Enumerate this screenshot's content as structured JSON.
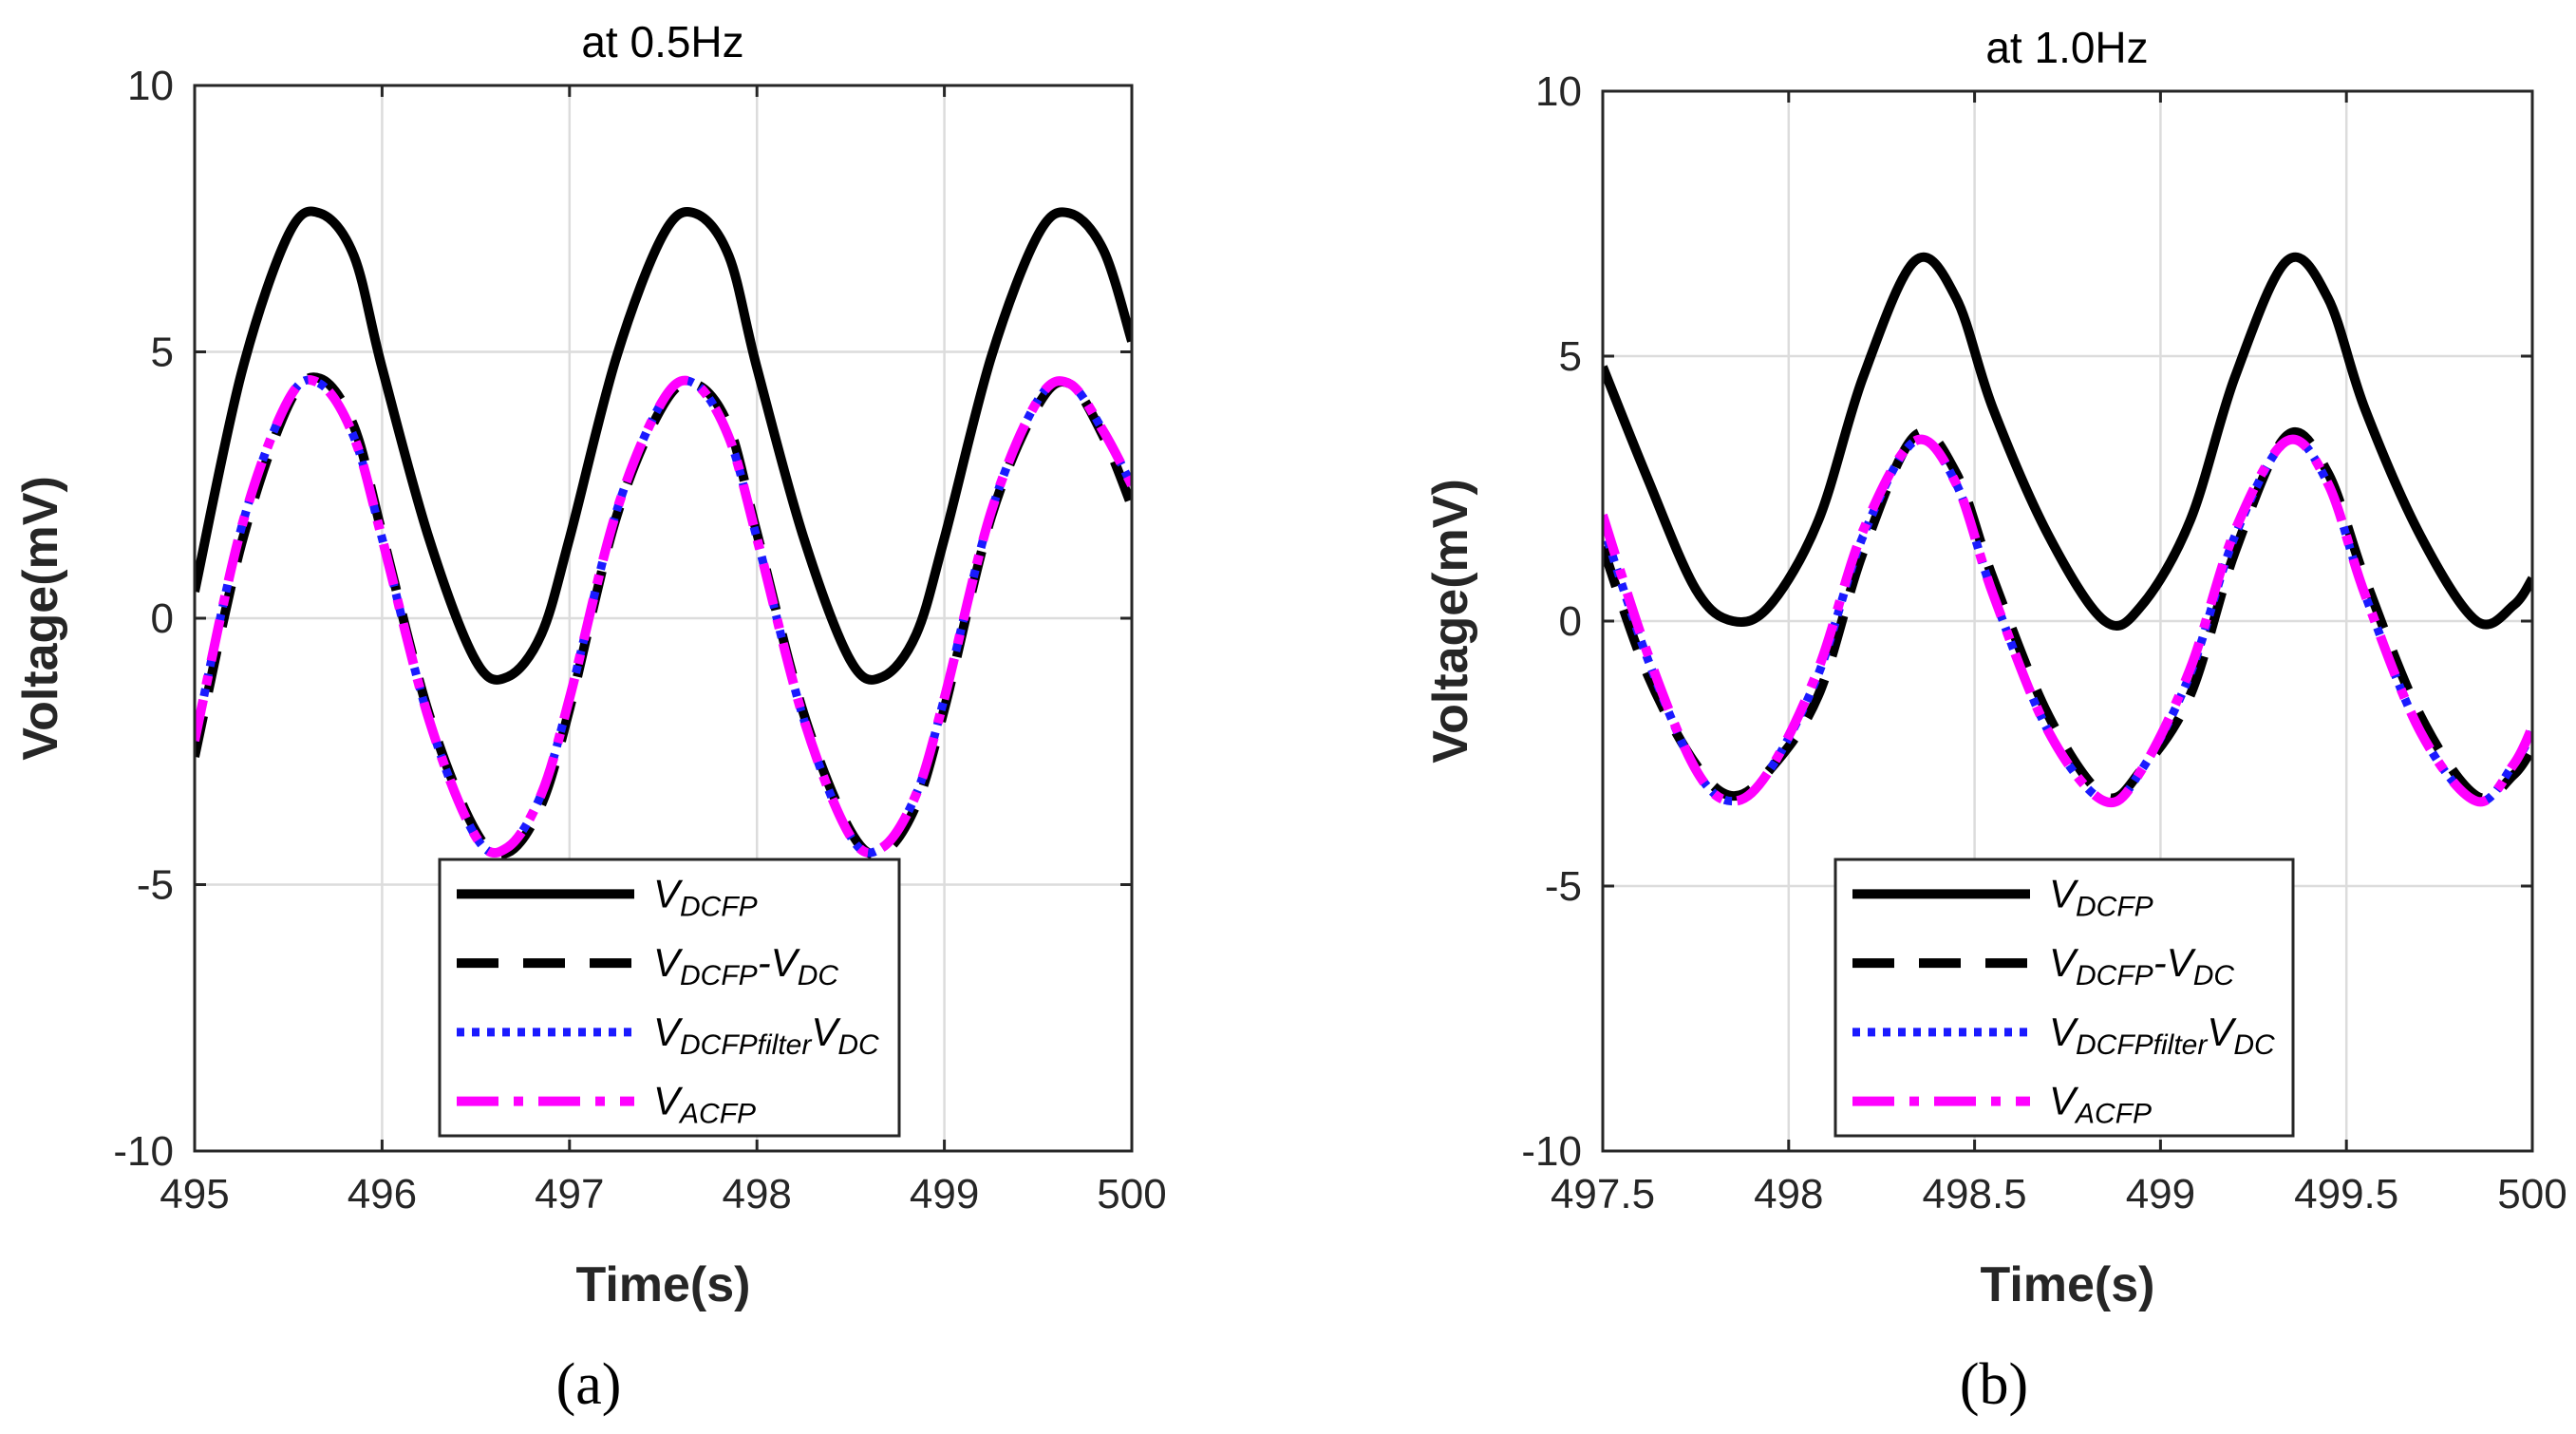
{
  "chart_data": [
    {
      "panel_label": "(a)",
      "type": "line",
      "title": "at 0.5Hz",
      "xlabel": "Time(s)",
      "ylabel": "Voltage(mV)",
      "xlim": [
        495,
        500
      ],
      "ylim": [
        -10,
        10
      ],
      "xticks": [
        495,
        496,
        497,
        498,
        499,
        500
      ],
      "xtick_labels": [
        "495",
        "496",
        "497",
        "498",
        "499",
        "500"
      ],
      "yticks": [
        -10,
        -5,
        0,
        5,
        10
      ],
      "ytick_labels": [
        "-10",
        "-5",
        "0",
        "5",
        "10"
      ],
      "grid": true,
      "legend_position": "bottom-right",
      "series": [
        {
          "name": "V_DCFP",
          "color": "#000000",
          "style": "solid",
          "x": [
            495.0,
            495.25,
            495.5,
            495.67,
            495.85,
            496.0,
            496.25,
            496.5,
            496.67,
            496.85,
            497.0,
            497.25,
            497.5,
            497.67,
            497.85,
            498.0,
            498.25,
            498.5,
            498.67,
            498.85,
            499.0,
            499.25,
            499.5,
            499.67,
            499.85,
            500.0
          ],
          "y": [
            0.5,
            4.6,
            7.2,
            7.6,
            6.8,
            4.7,
            1.5,
            -0.8,
            -1.1,
            -0.3,
            1.5,
            4.9,
            7.2,
            7.6,
            6.8,
            4.7,
            1.5,
            -0.8,
            -1.1,
            -0.3,
            1.5,
            4.9,
            7.2,
            7.6,
            6.9,
            5.2
          ]
        },
        {
          "name": "V_DCFP-V_DC",
          "color": "#000000",
          "style": "dashed",
          "x": [
            495.0,
            495.25,
            495.5,
            495.67,
            495.85,
            496.0,
            496.25,
            496.5,
            496.67,
            496.85,
            497.0,
            497.25,
            497.5,
            497.67,
            497.85,
            498.0,
            498.25,
            498.5,
            498.67,
            498.85,
            499.0,
            499.25,
            499.5,
            499.67,
            499.85,
            500.0
          ],
          "y": [
            -2.6,
            1.4,
            4.0,
            4.5,
            3.6,
            1.6,
            -1.8,
            -4.0,
            -4.4,
            -3.5,
            -1.7,
            1.9,
            4.0,
            4.4,
            3.6,
            1.6,
            -1.8,
            -4.0,
            -4.4,
            -3.5,
            -1.7,
            1.9,
            4.0,
            4.4,
            3.4,
            2.1
          ]
        },
        {
          "name": "V_DCFPfilterV_DC",
          "color": "#1a1aff",
          "style": "dotted",
          "x": [
            495.0,
            495.25,
            495.5,
            495.67,
            495.85,
            496.0,
            496.25,
            496.5,
            496.67,
            496.85,
            497.0,
            497.25,
            497.5,
            497.67,
            497.85,
            498.0,
            498.25,
            498.5,
            498.67,
            498.85,
            499.0,
            499.25,
            499.5,
            499.67,
            499.85,
            500.0
          ],
          "y": [
            -2.3,
            1.7,
            4.1,
            4.4,
            3.4,
            1.5,
            -1.9,
            -4.1,
            -4.3,
            -3.3,
            -1.5,
            2.0,
            4.1,
            4.4,
            3.4,
            1.5,
            -1.9,
            -4.1,
            -4.3,
            -3.3,
            -1.5,
            2.0,
            4.1,
            4.4,
            3.5,
            2.5
          ]
        },
        {
          "name": "V_ACFP",
          "color": "#ff00ff",
          "style": "dashdot",
          "x": [
            495.0,
            495.25,
            495.5,
            495.67,
            495.85,
            496.0,
            496.25,
            496.5,
            496.67,
            496.85,
            497.0,
            497.25,
            497.5,
            497.67,
            497.85,
            498.0,
            498.25,
            498.5,
            498.67,
            498.85,
            499.0,
            499.25,
            499.5,
            499.67,
            499.85,
            500.0
          ],
          "y": [
            -2.3,
            1.7,
            4.1,
            4.4,
            3.4,
            1.5,
            -1.9,
            -4.1,
            -4.3,
            -3.3,
            -1.5,
            2.0,
            4.1,
            4.4,
            3.4,
            1.5,
            -1.9,
            -4.1,
            -4.3,
            -3.3,
            -1.5,
            2.0,
            4.1,
            4.4,
            3.5,
            2.5
          ]
        }
      ]
    },
    {
      "panel_label": "(b)",
      "type": "line",
      "title": "at 1.0Hz",
      "xlabel": "Time(s)",
      "ylabel": "Voltage(mV)",
      "xlim": [
        497.5,
        500
      ],
      "ylim": [
        -10,
        10
      ],
      "xticks": [
        497.5,
        498,
        498.5,
        499,
        499.5,
        500
      ],
      "xtick_labels": [
        "497.5",
        "498",
        "498.5",
        "499",
        "499.5",
        "500"
      ],
      "yticks": [
        -10,
        -5,
        0,
        5,
        10
      ],
      "ytick_labels": [
        "-10",
        "-5",
        "0",
        "5",
        "10"
      ],
      "grid": true,
      "legend_position": "bottom-right",
      "series": [
        {
          "name": "V_DCFP",
          "color": "#000000",
          "style": "solid",
          "x": [
            497.5,
            497.62,
            497.75,
            497.85,
            497.95,
            498.08,
            498.2,
            498.34,
            498.45,
            498.55,
            498.7,
            498.85,
            498.95,
            499.08,
            499.2,
            499.34,
            499.45,
            499.55,
            499.7,
            499.85,
            499.95,
            500.0
          ],
          "y": [
            4.8,
            2.7,
            0.6,
            0.0,
            0.3,
            1.9,
            4.6,
            6.8,
            6.1,
            4.0,
            1.6,
            0.0,
            0.3,
            1.9,
            4.6,
            6.8,
            6.1,
            4.0,
            1.6,
            0.0,
            0.3,
            0.8
          ]
        },
        {
          "name": "V_DCFP-V_DC",
          "color": "#000000",
          "style": "dashed",
          "x": [
            497.5,
            497.62,
            497.75,
            497.85,
            497.95,
            498.08,
            498.2,
            498.34,
            498.45,
            498.55,
            498.7,
            498.85,
            498.95,
            499.08,
            499.2,
            499.34,
            499.45,
            499.55,
            499.7,
            499.85,
            499.95,
            500.0
          ],
          "y": [
            1.4,
            -1.0,
            -2.7,
            -3.3,
            -2.8,
            -1.4,
            1.3,
            3.5,
            2.8,
            0.8,
            -1.8,
            -3.3,
            -2.8,
            -1.4,
            1.3,
            3.5,
            2.8,
            0.8,
            -1.8,
            -3.3,
            -2.9,
            -2.4
          ]
        },
        {
          "name": "V_DCFPfilterV_DC",
          "color": "#1a1aff",
          "style": "dotted",
          "x": [
            497.5,
            497.62,
            497.75,
            497.85,
            497.95,
            498.08,
            498.2,
            498.34,
            498.45,
            498.55,
            498.7,
            498.85,
            498.95,
            499.08,
            499.2,
            499.34,
            499.45,
            499.55,
            499.7,
            499.85,
            499.95,
            500.0
          ],
          "y": [
            1.8,
            -0.7,
            -2.8,
            -3.4,
            -2.8,
            -1.0,
            1.6,
            3.4,
            2.6,
            0.5,
            -2.1,
            -3.4,
            -2.8,
            -1.0,
            1.6,
            3.4,
            2.6,
            0.5,
            -2.1,
            -3.4,
            -2.7,
            -2.1
          ]
        },
        {
          "name": "V_ACFP",
          "color": "#ff00ff",
          "style": "dashdot",
          "x": [
            497.5,
            497.62,
            497.75,
            497.85,
            497.95,
            498.08,
            498.2,
            498.34,
            498.45,
            498.55,
            498.7,
            498.85,
            498.95,
            499.08,
            499.2,
            499.34,
            499.45,
            499.55,
            499.7,
            499.85,
            499.95,
            500.0
          ],
          "y": [
            2.0,
            -0.6,
            -2.8,
            -3.4,
            -2.8,
            -0.9,
            1.7,
            3.4,
            2.6,
            0.5,
            -2.1,
            -3.4,
            -2.8,
            -0.9,
            1.7,
            3.4,
            2.6,
            0.5,
            -2.1,
            -3.4,
            -2.7,
            -2.0
          ]
        }
      ]
    }
  ],
  "legend": [
    {
      "main": "V",
      "sub": "DCFP",
      "tail_main": "",
      "tail_sub": ""
    },
    {
      "main": "V",
      "sub": "DCFP",
      "tail_main": "-V",
      "tail_sub": "DC"
    },
    {
      "main": "V",
      "sub": "DCFPfilter",
      "tail_main": "V",
      "tail_sub": "DC"
    },
    {
      "main": "V",
      "sub": "ACFP",
      "tail_main": "",
      "tail_sub": ""
    }
  ]
}
